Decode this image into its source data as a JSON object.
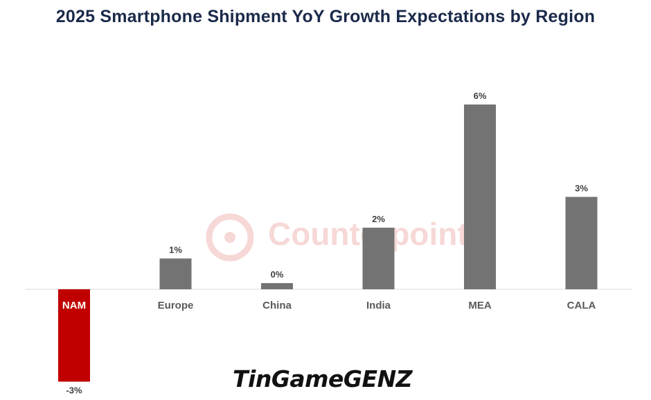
{
  "chart_data": {
    "type": "bar",
    "title": "2025 Smartphone Shipment YoY Growth Expectations by Region",
    "categories": [
      "NAM",
      "Europe",
      "China",
      "India",
      "MEA",
      "CALA"
    ],
    "values": [
      -3,
      1,
      0.2,
      2,
      6,
      3
    ],
    "data_labels": [
      "-3%",
      "1%",
      "0%",
      "2%",
      "6%",
      "3%"
    ],
    "ylim": [
      -3.5,
      6.5
    ],
    "grid": false,
    "legend": "none",
    "colors": {
      "default_bar": "#737373",
      "highlight_bar": "#c00000",
      "highlight_category_label": "#ffffff",
      "category_label": "#595959",
      "data_label": "#404040",
      "axis_line": "#d9d9d9",
      "title": "#1b2a4a"
    },
    "highlight_index": 0
  },
  "watermark": {
    "text": "Counterpoint",
    "color": "#d9534f"
  },
  "site_logo": {
    "text": "TinGameGENZ"
  }
}
